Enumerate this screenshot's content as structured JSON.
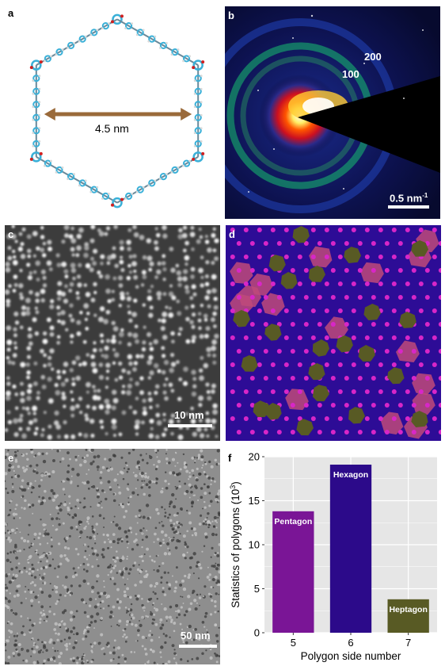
{
  "panels": {
    "a": {
      "label": "a",
      "distance": "4.5 nm"
    },
    "b": {
      "label": "b",
      "ring_200": "200",
      "ring_100": "100",
      "scale": "0.5 nm",
      "scale_exp": "-1"
    },
    "c": {
      "label": "c",
      "scale": "10 nm"
    },
    "d": {
      "label": "d"
    },
    "e": {
      "label": "e",
      "scale": "50 nm"
    },
    "f": {
      "label": "f"
    }
  },
  "colors": {
    "pentagon": "#7a1596",
    "hexagon": "#2c0a8a",
    "heptagon": "#585a24",
    "plot_bg": "#e6e6e6",
    "grid": "#ffffff",
    "arrow": "#9a6a3a"
  },
  "chart_data": {
    "type": "bar",
    "categories": [
      "5",
      "6",
      "7"
    ],
    "values": [
      13.8,
      19.1,
      3.8
    ],
    "bar_labels": [
      "Pentagon",
      "Hexagon",
      "Heptagon"
    ],
    "xlabel": "Polygon side number",
    "ylabel": "Statistics of polygons (10",
    "ylabel_exp": "3",
    "ylabel_close": ")",
    "ylim": [
      0,
      20
    ],
    "yticks": [
      "0",
      "5",
      "10",
      "15",
      "20"
    ],
    "grid": true
  }
}
